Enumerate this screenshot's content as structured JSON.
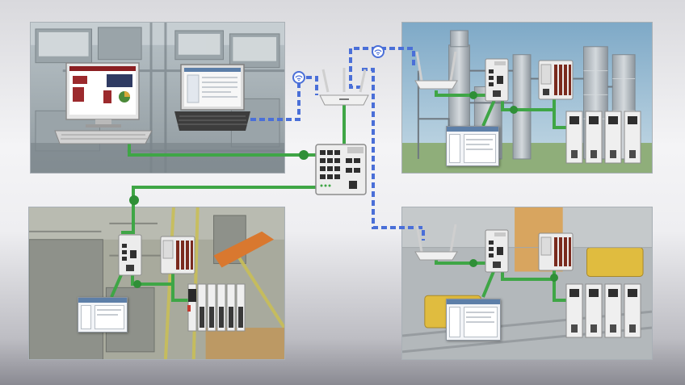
{
  "colors": {
    "wired": "#3fa646",
    "wired_dark": "#2c7c33",
    "wireless": "#4a6fd8",
    "wireless_light": "#9fb4ee",
    "node": "#2f8f37"
  },
  "zones": [
    {
      "id": "control-room",
      "theme": "plant-interior"
    },
    {
      "id": "process-plant",
      "theme": "refinery-exterior"
    },
    {
      "id": "assembly-line",
      "theme": "factory-floor"
    },
    {
      "id": "warehouse",
      "theme": "logistics-floor"
    }
  ],
  "devices": {
    "central_switch": "managed-switch-icon",
    "wireless_ap": "wireless-access-point-icon",
    "wireless_client": "wireless-client-icon",
    "controller": "plc-controller-icon",
    "drive": "servo-drive-icon",
    "io": "io-module-icon",
    "hmi": "hmi-terminal-icon",
    "workstation": "workstation-icon",
    "laptop": "laptop-icon",
    "wifi": "wifi-icon"
  }
}
